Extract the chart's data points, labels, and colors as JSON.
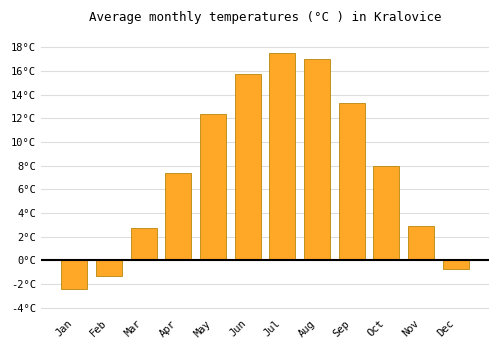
{
  "months": [
    "Jan",
    "Feb",
    "Mar",
    "Apr",
    "May",
    "Jun",
    "Jul",
    "Aug",
    "Sep",
    "Oct",
    "Nov",
    "Dec"
  ],
  "temperatures": [
    -2.4,
    -1.3,
    2.7,
    7.4,
    12.4,
    15.7,
    17.5,
    17.0,
    13.3,
    8.0,
    2.9,
    -0.7
  ],
  "bar_color": "#FFA726",
  "bar_edge_color": "#B8860B",
  "title": "Average monthly temperatures (°C ) in Kralovice",
  "ylim": [
    -4.5,
    19.5
  ],
  "yticks": [
    -4,
    -2,
    0,
    2,
    4,
    6,
    8,
    10,
    12,
    14,
    16,
    18
  ],
  "ytick_labels": [
    "-4°C",
    "-2°C",
    "0°C",
    "2°C",
    "4°C",
    "6°C",
    "8°C",
    "10°C",
    "12°C",
    "14°C",
    "16°C",
    "18°C"
  ],
  "background_color": "#ffffff",
  "grid_color": "#dddddd",
  "title_fontsize": 9,
  "tick_fontsize": 7.5,
  "bar_width": 0.75
}
